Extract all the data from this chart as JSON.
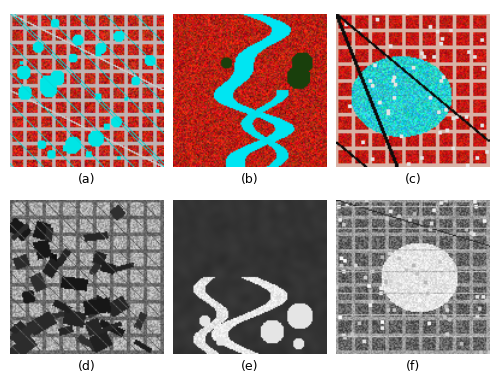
{
  "figure_width": 5.0,
  "figure_height": 3.83,
  "dpi": 100,
  "nrows": 2,
  "ncols": 3,
  "labels": [
    "(a)",
    "(b)",
    "(c)",
    "(d)",
    "(e)",
    "(f)"
  ],
  "label_fontsize": 9,
  "background_color": "#ffffff",
  "image_size": 128,
  "hspace": 0.18,
  "wspace": 0.06
}
